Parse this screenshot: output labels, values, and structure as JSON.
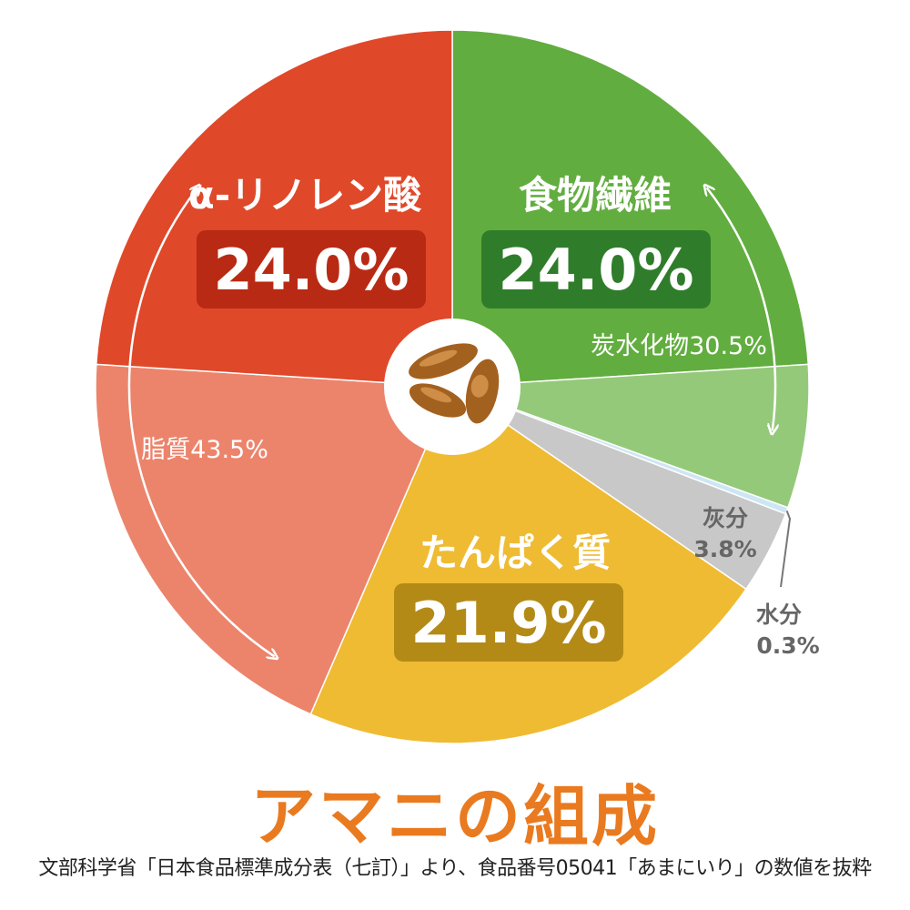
{
  "chart_data": {
    "type": "pie",
    "title": "アマニの組成",
    "source_note": "文部科学省「日本食品標準成分表（七訂）」より、食品番号05041「あまにいり」の数値を抜粋",
    "unit": "%",
    "start_angle_deg": 0,
    "direction": "clockwise",
    "slices": [
      {
        "key": "fiber",
        "label": "食物繊維",
        "value": 24.0,
        "display": "24.0%",
        "color": "#62ad3f",
        "badge_color": "#2f7d2b"
      },
      {
        "key": "other_carb",
        "label": "",
        "value": 6.5,
        "display": "",
        "color": "#95c97a"
      },
      {
        "key": "water",
        "label": "水分",
        "value": 0.3,
        "display": "0.3%",
        "color": "#cde6f4"
      },
      {
        "key": "ash",
        "label": "灰分",
        "value": 3.8,
        "display": "3.8%",
        "color": "#c8c8c8"
      },
      {
        "key": "protein",
        "label": "たんぱく質",
        "value": 21.9,
        "display": "21.9%",
        "color": "#efbb33",
        "badge_color": "#b48a17"
      },
      {
        "key": "other_fat",
        "label": "",
        "value": 19.5,
        "display": "",
        "color": "#ec846c"
      },
      {
        "key": "ala",
        "label": "α-リノレン酸",
        "value": 24.0,
        "display": "24.0%",
        "color": "#e0482a",
        "badge_color": "#b92a14"
      }
    ],
    "groups": [
      {
        "key": "carbohydrate",
        "label": "炭水化物30.5%",
        "value": 30.5
      },
      {
        "key": "lipid",
        "label": "脂質43.5%",
        "value": 43.5
      }
    ],
    "legend": "none",
    "grid": false
  }
}
